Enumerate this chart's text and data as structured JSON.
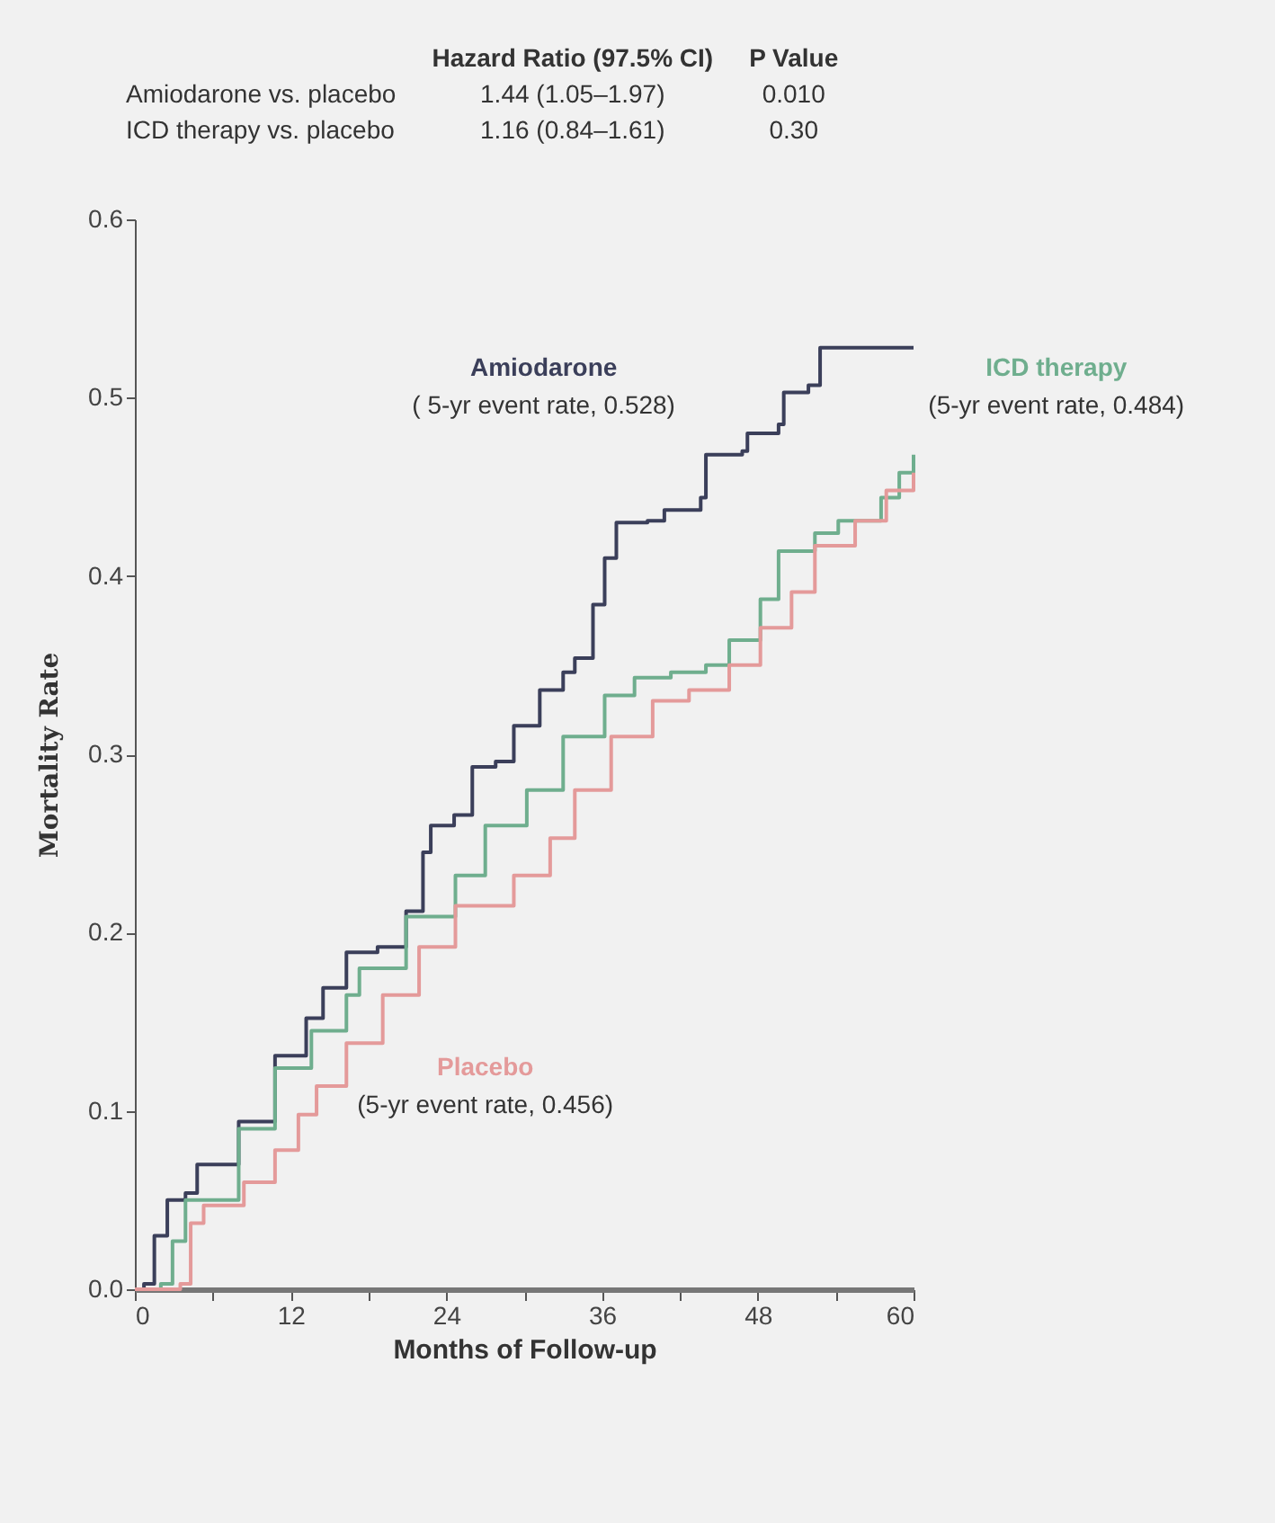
{
  "chart_data": {
    "type": "step",
    "xlabel": "Months of Follow-up",
    "ylabel": "Mortality Rate",
    "xlim": [
      0,
      60
    ],
    "xticks": [
      0,
      {
        "value": 6,
        "label": null
      },
      12,
      {
        "value": 18,
        "label": null
      },
      24,
      {
        "value": 30,
        "label": null
      },
      36,
      {
        "value": 42,
        "label": null
      },
      48,
      {
        "value": 54,
        "label": null
      },
      60
    ],
    "ylim": [
      0,
      0.6
    ],
    "yticks": [
      {
        "value": 0,
        "label": "0.0"
      },
      0.1,
      0.2,
      0.3,
      0.4,
      0.5,
      0.6
    ],
    "grid": false,
    "series": [
      {
        "name": "Amiodarone",
        "color": "#3b3f5a",
        "x": [
          0,
          0.7,
          1.5,
          2.5,
          3.9,
          4.8,
          8,
          10.8,
          13.2,
          14.5,
          16.3,
          18.7,
          20.9,
          22.2,
          22.8,
          24.6,
          26,
          27.8,
          29.2,
          31.2,
          33,
          33.9,
          35.3,
          36.2,
          37.1,
          39.5,
          40.8,
          43.6,
          44,
          46.8,
          47.2,
          49.6,
          50,
          51.9,
          52.8,
          60
        ],
        "values": [
          0,
          0.003,
          0.03,
          0.05,
          0.054,
          0.07,
          0.094,
          0.131,
          0.152,
          0.169,
          0.189,
          0.192,
          0.212,
          0.245,
          0.26,
          0.266,
          0.293,
          0.296,
          0.316,
          0.336,
          0.346,
          0.354,
          0.384,
          0.41,
          0.43,
          0.431,
          0.437,
          0.444,
          0.468,
          0.47,
          0.48,
          0.485,
          0.503,
          0.507,
          0.528,
          0.528
        ]
      },
      {
        "name": "ICD therapy",
        "color": "#6fae8e",
        "x": [
          0,
          2,
          2.9,
          3.9,
          8,
          10.8,
          13.6,
          16.3,
          17.3,
          20.9,
          24.7,
          27,
          30.2,
          33,
          36.2,
          38.5,
          41.3,
          44,
          45.8,
          48.2,
          49.6,
          52.4,
          54.2,
          57.5,
          58.9,
          60
        ],
        "values": [
          0,
          0.003,
          0.027,
          0.05,
          0.09,
          0.124,
          0.145,
          0.165,
          0.18,
          0.209,
          0.232,
          0.26,
          0.28,
          0.31,
          0.333,
          0.343,
          0.346,
          0.35,
          0.364,
          0.387,
          0.414,
          0.424,
          0.431,
          0.444,
          0.458,
          0.468
        ]
      },
      {
        "name": "Placebo",
        "color": "#e49a9a",
        "x": [
          0,
          3.5,
          4.3,
          5.3,
          8.4,
          10.8,
          12.6,
          14,
          16.3,
          19.1,
          21.9,
          24.7,
          29.2,
          32,
          33.9,
          36.7,
          39.9,
          42.7,
          45.8,
          48.2,
          50.6,
          52.4,
          55.5,
          57.9,
          60
        ],
        "values": [
          0,
          0.003,
          0.037,
          0.047,
          0.06,
          0.078,
          0.098,
          0.114,
          0.138,
          0.165,
          0.192,
          0.215,
          0.232,
          0.253,
          0.28,
          0.31,
          0.33,
          0.336,
          0.35,
          0.371,
          0.391,
          0.417,
          0.431,
          0.448,
          0.458
        ]
      }
    ],
    "annotations": [
      "Hazard Ratio (97.5% CI)",
      "P Value",
      "Amiodarone vs. placebo",
      "1.44 (1.05–1.97)",
      "0.010",
      "ICD therapy vs. placebo",
      "1.16 (0.84–1.61)",
      "0.30",
      "( 5-yr event rate, 0.528)",
      "(5-yr event rate, 0.484)",
      "(5-yr event rate, 0.456)"
    ]
  }
}
